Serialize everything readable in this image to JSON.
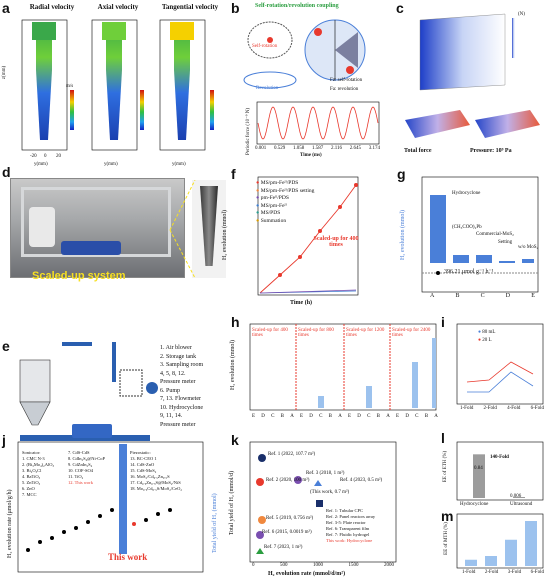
{
  "panel_labels": [
    "a",
    "b",
    "c",
    "d",
    "e",
    "f",
    "g",
    "h",
    "i",
    "j",
    "k",
    "l",
    "m"
  ],
  "a": {
    "titles": [
      "Radial velocity",
      "Axial velocity",
      "Tangential velocity"
    ],
    "ylabel": "z(mm)",
    "xlabel": "y(mm)",
    "xticks": [
      "-20",
      "0",
      "20"
    ],
    "yticks": [
      "0",
      "50",
      "100",
      "150",
      "200",
      "250",
      "300"
    ],
    "cbar_unit": "m/s"
  },
  "b": {
    "title": "Self-rotation/revolution coupling",
    "self_rotation": "Self-rotation",
    "revolution": "Revolution",
    "fz_legend": "Fz: self-rotation",
    "fa_legend": "Fa: revolution",
    "ylabel": "Periodic force (10⁻⁹ N)",
    "xlabel": "Time (ms)",
    "xticks": [
      "0.001",
      "0.529",
      "1.058",
      "1.587",
      "2.116",
      "2.645",
      "3.174"
    ]
  },
  "c": {
    "label_left": "Total force",
    "label_right": "Pressure: 10⁹ Pa",
    "cbar_unit": "(N)"
  },
  "d": {
    "caption": "Scaled-up system"
  },
  "e": {
    "legend": [
      "1. Air blower",
      "2. Storage tank",
      "3. Sampling room",
      "4, 5, 8, 12.",
      "Pressure meter",
      "6. Pump",
      "7, 13. Flowmeter",
      "10. Hydrocyclone",
      "9, 11, 14.",
      "Pressure meter"
    ]
  },
  "f": {
    "ylabel": "H₂ evolution (mmol)",
    "xlabel": "Time (h)",
    "annotation": "Scaled-up for 400 times",
    "series": [
      {
        "name": "MS/pm-Feᴵᴵ/PDS",
        "color": "#e8392d"
      },
      {
        "name": "MS/pm-Feᴵᴵ/PDS setting",
        "color": "#f0883e"
      },
      {
        "name": "pm-Feᴵᴵ/PDS",
        "color": "#7a4fb0"
      },
      {
        "name": "MS/pm-Feᴵᴵ",
        "color": "#3f7fd1"
      },
      {
        "name": "MS/PDS",
        "color": "#2a9d8f"
      },
      {
        "name": "Summation",
        "color": "#d99c00"
      }
    ]
  },
  "g": {
    "ylabel": "H₂ evolution (mmol)",
    "annotations": [
      "Hydrocyclone",
      "(CH₃COO)₂Pb",
      "Commercial-MoS₂",
      "Setting",
      "w/o MoS₂"
    ],
    "rate_label": "396.21 μmol g⁻¹ h⁻¹",
    "categories": [
      "A",
      "B",
      "C",
      "D",
      "E"
    ]
  },
  "h": {
    "ylabel": "H₂ evolution (mmol)",
    "groups": [
      "Scaled-up for 400 times",
      "Scaled-up for 800 times",
      "Scaled-up for 1200 times",
      "Scaled-up for 2400 times"
    ],
    "xlabels": [
      "E",
      "D",
      "C",
      "B",
      "A",
      "E",
      "D",
      "C",
      "B",
      "A",
      "E",
      "D",
      "C",
      "B",
      "A",
      "E",
      "D",
      "C",
      "B",
      "A"
    ]
  },
  "i": {
    "ylabel": "H₂ evolution rate (μmol g⁻¹ h⁻¹)",
    "legend": [
      "80 mL",
      "20 L"
    ],
    "xticks": [
      "1-Fold",
      "2-Fold",
      "4-Fold",
      "6-Fold"
    ]
  },
  "j": {
    "ylabel_left": "H₂ evolution rate (μmol/g/h)",
    "ylabel_right": "Total yield of H₂ (mmol)",
    "xlabel_highlight": "This work",
    "sonicator": [
      "Sonicator:",
      "1. CMC N-3",
      "2. (Bi₃Mo₄)₂AlO₃",
      "3. Bi₂O₃Cl",
      "4. BaTiO₃",
      "5. ZnTiO₃",
      "6. ZnO",
      "7. MCC"
    ],
    "others": [
      "7. CdS-CdS",
      "8. CdIn₂S₄@Ni-CoP",
      "9. CdZnIn₂S₄",
      "10. COF-SO4",
      "11. TiO₂",
      "12. This work"
    ],
    "piezo": [
      "Piezostatic:",
      "13. BC-CEO 1",
      "14. CdS-ZnO",
      "15. CdS-MoS₂",
      "16. MoS₂/Cd₀.₅Zn₀.₅S",
      "17. Cd₀.₅Zn₀.₅S@MoS₂/NiS",
      "18. Mo₀.₅Cd₀.₅S/MoS₂/CeO₂"
    ]
  },
  "k": {
    "ylabel": "Total yield of H₂ (mmol/d)",
    "xlabel": "H₂ evolution rate (mmol/d/m²)",
    "refs": [
      "Ref. 1 (2022, 107.7 m²)",
      "Ref. 2 (2020, 100 m²)",
      "Ref. 3 (2018, 1 m²)",
      "Ref. 4 (2023, 0.5 m²)",
      "Ref. 5 (2019, 0.756 m²)",
      "Ref. 6 (2015, 0.0019 m²)",
      "Ref. 7 (2023, 1 m²)",
      "(This work, 0.7 m²)"
    ],
    "legend": [
      "Ref. 1: Tubular CPC",
      "Ref. 2: Panel reactors array",
      "Ref. 3-5: Plate reactor",
      "Ref. 6: Transparent film",
      "Ref. 7: Fluidic hydrogel",
      "This work: Hydrocyclone"
    ],
    "xticks": [
      "0",
      "500",
      "1000",
      "1500",
      "2000"
    ]
  },
  "l": {
    "ylabel": "EE of ETH (%)",
    "annotation": "140-Fold",
    "categories": [
      "Hydrocyclone",
      "Ultrasound"
    ],
    "values": [
      0.84,
      0.006
    ],
    "value_labels": [
      "0.84",
      "0.006"
    ]
  },
  "m": {
    "ylabel": "EE of MTH (%)",
    "categories": [
      "1-Fold",
      "2-Fold",
      "3-Fold",
      "6-Fold"
    ],
    "values": [
      5,
      8,
      21,
      36
    ]
  },
  "colors": {
    "red": "#e8392d",
    "blue": "#4a7fd8",
    "lightblue": "#9cc2ee",
    "grey": "#9c9c9c"
  }
}
